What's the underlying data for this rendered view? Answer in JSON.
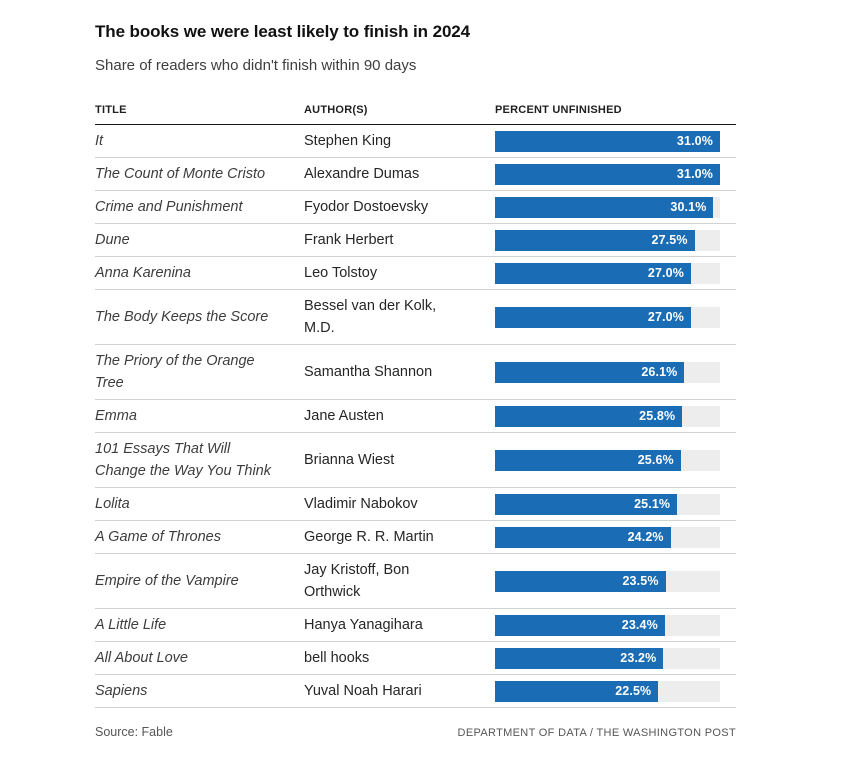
{
  "header": {
    "title": "The books we were least likely to finish in 2024",
    "subtitle": "Share of readers who didn't finish within 90 days"
  },
  "table": {
    "columns": [
      "TITLE",
      "AUTHOR(S)",
      "PERCENT UNFINISHED"
    ]
  },
  "rows": [
    {
      "title": "It",
      "author": "Stephen King",
      "value": 31.0,
      "label": "31.0%"
    },
    {
      "title": "The Count of Monte Cristo",
      "author": "Alexandre Dumas",
      "value": 31.0,
      "label": "31.0%"
    },
    {
      "title": "Crime and Punishment",
      "author": "Fyodor Dostoevsky",
      "value": 30.1,
      "label": "30.1%"
    },
    {
      "title": "Dune",
      "author": "Frank Herbert",
      "value": 27.5,
      "label": "27.5%"
    },
    {
      "title": "Anna Karenina",
      "author": "Leo Tolstoy",
      "value": 27.0,
      "label": "27.0%"
    },
    {
      "title": "The Body Keeps the Score",
      "author": "Bessel van der Kolk, M.D.",
      "value": 27.0,
      "label": "27.0%"
    },
    {
      "title": "The Priory of the Orange Tree",
      "author": "Samantha Shannon",
      "value": 26.1,
      "label": "26.1%"
    },
    {
      "title": "Emma",
      "author": "Jane Austen",
      "value": 25.8,
      "label": "25.8%"
    },
    {
      "title": "101 Essays That Will Change the Way You Think",
      "author": "Brianna Wiest",
      "value": 25.6,
      "label": "25.6%"
    },
    {
      "title": "Lolita",
      "author": "Vladimir Nabokov",
      "value": 25.1,
      "label": "25.1%"
    },
    {
      "title": "A Game of Thrones",
      "author": "George R. R. Martin",
      "value": 24.2,
      "label": "24.2%"
    },
    {
      "title": "Empire of the Vampire",
      "author": "Jay Kristoff, Bon Orthwick",
      "value": 23.5,
      "label": "23.5%"
    },
    {
      "title": "A Little Life",
      "author": "Hanya Yanagihara",
      "value": 23.4,
      "label": "23.4%"
    },
    {
      "title": "All About Love",
      "author": "bell hooks",
      "value": 23.2,
      "label": "23.2%"
    },
    {
      "title": "Sapiens",
      "author": "Yuval Noah Harari",
      "value": 22.5,
      "label": "22.5%"
    }
  ],
  "chart_data": {
    "type": "bar",
    "orientation": "horizontal",
    "title": "The books we were least likely to finish in 2024",
    "subtitle": "Share of readers who didn't finish within 90 days",
    "xlabel": "Percent unfinished",
    "ylabel": "Book title",
    "xlim": [
      0,
      31.0
    ],
    "grid": false,
    "legend": "none",
    "value_label_position": "inside-end",
    "bar_color": "#1a6cb4",
    "track_color": "#ededed",
    "categories": [
      "It",
      "The Count of Monte Cristo",
      "Crime and Punishment",
      "Dune",
      "Anna Karenina",
      "The Body Keeps the Score",
      "The Priory of the Orange Tree",
      "Emma",
      "101 Essays That Will Change the Way You Think",
      "Lolita",
      "A Game of Thrones",
      "Empire of the Vampire",
      "A Little Life",
      "All About Love",
      "Sapiens"
    ],
    "authors": [
      "Stephen King",
      "Alexandre Dumas",
      "Fyodor Dostoevsky",
      "Frank Herbert",
      "Leo Tolstoy",
      "Bessel van der Kolk, M.D.",
      "Samantha Shannon",
      "Jane Austen",
      "Brianna Wiest",
      "Vladimir Nabokov",
      "George R. R. Martin",
      "Jay Kristoff, Bon Orthwick",
      "Hanya Yanagihara",
      "bell hooks",
      "Yuval Noah Harari"
    ],
    "series": [
      {
        "name": "Percent unfinished",
        "values": [
          31.0,
          31.0,
          30.1,
          27.5,
          27.0,
          27.0,
          26.1,
          25.8,
          25.6,
          25.1,
          24.2,
          23.5,
          23.4,
          23.2,
          22.5
        ]
      }
    ]
  },
  "footer": {
    "source": "Source: Fable",
    "credit": "DEPARTMENT OF DATA / THE WASHINGTON POST"
  }
}
